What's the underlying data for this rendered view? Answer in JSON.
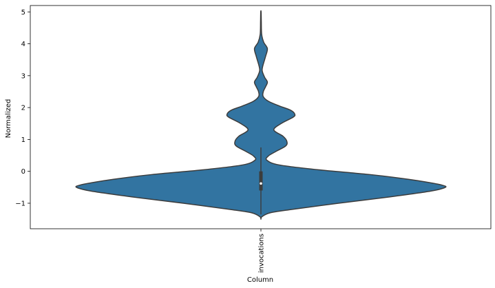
{
  "chart_data": {
    "type": "violin",
    "categories": [
      "invocations"
    ],
    "xlabel": "Column",
    "ylabel": "Normalized",
    "ylim": [
      -1.8,
      5.2
    ],
    "yticks": [
      -1,
      0,
      1,
      2,
      3,
      4,
      5
    ],
    "grid": false,
    "colors": {
      "fill": "#3274a1",
      "edge": "#3c3c3c",
      "box": "#3c3c3c",
      "median": "#ffffff"
    },
    "series": [
      {
        "category": "invocations",
        "density_profile": [
          {
            "y": -1.5,
            "w": 0.0
          },
          {
            "y": -1.42,
            "w": 0.006
          },
          {
            "y": -1.3,
            "w": 0.05
          },
          {
            "y": -1.2,
            "w": 0.16
          },
          {
            "y": -1.0,
            "w": 0.42
          },
          {
            "y": -0.8,
            "w": 0.7
          },
          {
            "y": -0.62,
            "w": 0.92
          },
          {
            "y": -0.5,
            "w": 1.0
          },
          {
            "y": -0.43,
            "w": 0.98
          },
          {
            "y": -0.36,
            "w": 0.92
          },
          {
            "y": -0.25,
            "w": 0.8
          },
          {
            "y": -0.1,
            "w": 0.59
          },
          {
            "y": 0.05,
            "w": 0.31
          },
          {
            "y": 0.2,
            "w": 0.1
          },
          {
            "y": 0.35,
            "w": 0.032
          },
          {
            "y": 0.48,
            "w": 0.04
          },
          {
            "y": 0.62,
            "w": 0.08
          },
          {
            "y": 0.8,
            "w": 0.135
          },
          {
            "y": 0.95,
            "w": 0.14
          },
          {
            "y": 1.1,
            "w": 0.12
          },
          {
            "y": 1.3,
            "w": 0.07
          },
          {
            "y": 1.5,
            "w": 0.11
          },
          {
            "y": 1.7,
            "w": 0.175
          },
          {
            "y": 1.8,
            "w": 0.183
          },
          {
            "y": 1.92,
            "w": 0.16
          },
          {
            "y": 2.05,
            "w": 0.1
          },
          {
            "y": 2.2,
            "w": 0.04
          },
          {
            "y": 2.35,
            "w": 0.012
          },
          {
            "y": 2.5,
            "w": 0.013
          },
          {
            "y": 2.65,
            "w": 0.025
          },
          {
            "y": 2.8,
            "w": 0.035
          },
          {
            "y": 2.95,
            "w": 0.02
          },
          {
            "y": 3.15,
            "w": 0.007
          },
          {
            "y": 3.3,
            "w": 0.01
          },
          {
            "y": 3.6,
            "w": 0.025
          },
          {
            "y": 3.85,
            "w": 0.035
          },
          {
            "y": 4.05,
            "w": 0.015
          },
          {
            "y": 4.3,
            "w": 0.004
          },
          {
            "y": 4.7,
            "w": 0.002
          },
          {
            "y": 5.0,
            "w": 0.001
          }
        ],
        "box": {
          "q1": -0.6,
          "median": -0.38,
          "q3": 0.0,
          "whisker_low": -1.35,
          "whisker_high": 0.75
        }
      }
    ]
  }
}
